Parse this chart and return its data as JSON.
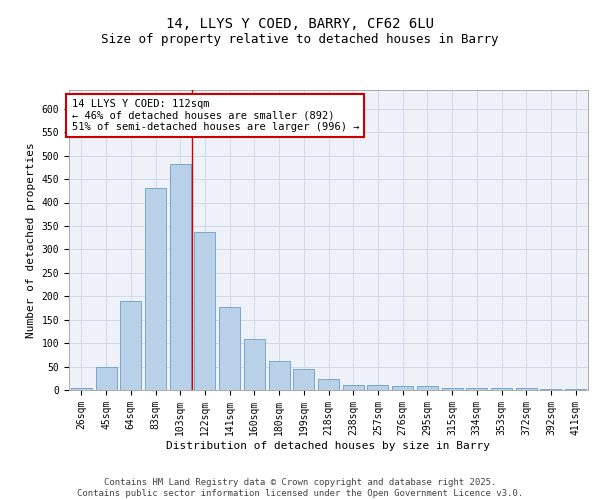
{
  "title1": "14, LLYS Y COED, BARRY, CF62 6LU",
  "title2": "Size of property relative to detached houses in Barry",
  "xlabel": "Distribution of detached houses by size in Barry",
  "ylabel": "Number of detached properties",
  "categories": [
    "26sqm",
    "45sqm",
    "64sqm",
    "83sqm",
    "103sqm",
    "122sqm",
    "141sqm",
    "160sqm",
    "180sqm",
    "199sqm",
    "218sqm",
    "238sqm",
    "257sqm",
    "276sqm",
    "295sqm",
    "315sqm",
    "334sqm",
    "353sqm",
    "372sqm",
    "392sqm",
    "411sqm"
  ],
  "values": [
    5,
    50,
    190,
    432,
    482,
    338,
    178,
    108,
    62,
    45,
    23,
    11,
    11,
    8,
    8,
    5,
    4,
    4,
    5,
    3,
    3
  ],
  "bar_color": "#b8d0e8",
  "bar_edge_color": "#6a9fc8",
  "grid_color": "#d0dae8",
  "background_color": "#eef2f8",
  "annotation_text": "14 LLYS Y COED: 112sqm\n← 46% of detached houses are smaller (892)\n51% of semi-detached houses are larger (996) →",
  "annotation_box_color": "#ffffff",
  "annotation_border_color": "#cc0000",
  "ylim": [
    0,
    640
  ],
  "yticks": [
    0,
    50,
    100,
    150,
    200,
    250,
    300,
    350,
    400,
    450,
    500,
    550,
    600
  ],
  "property_line_x": 4.47,
  "footer_line1": "Contains HM Land Registry data © Crown copyright and database right 2025.",
  "footer_line2": "Contains public sector information licensed under the Open Government Licence v3.0.",
  "title1_fontsize": 10,
  "title2_fontsize": 9,
  "axis_label_fontsize": 8,
  "tick_fontsize": 7,
  "annotation_fontsize": 7.5,
  "footer_fontsize": 6.5
}
